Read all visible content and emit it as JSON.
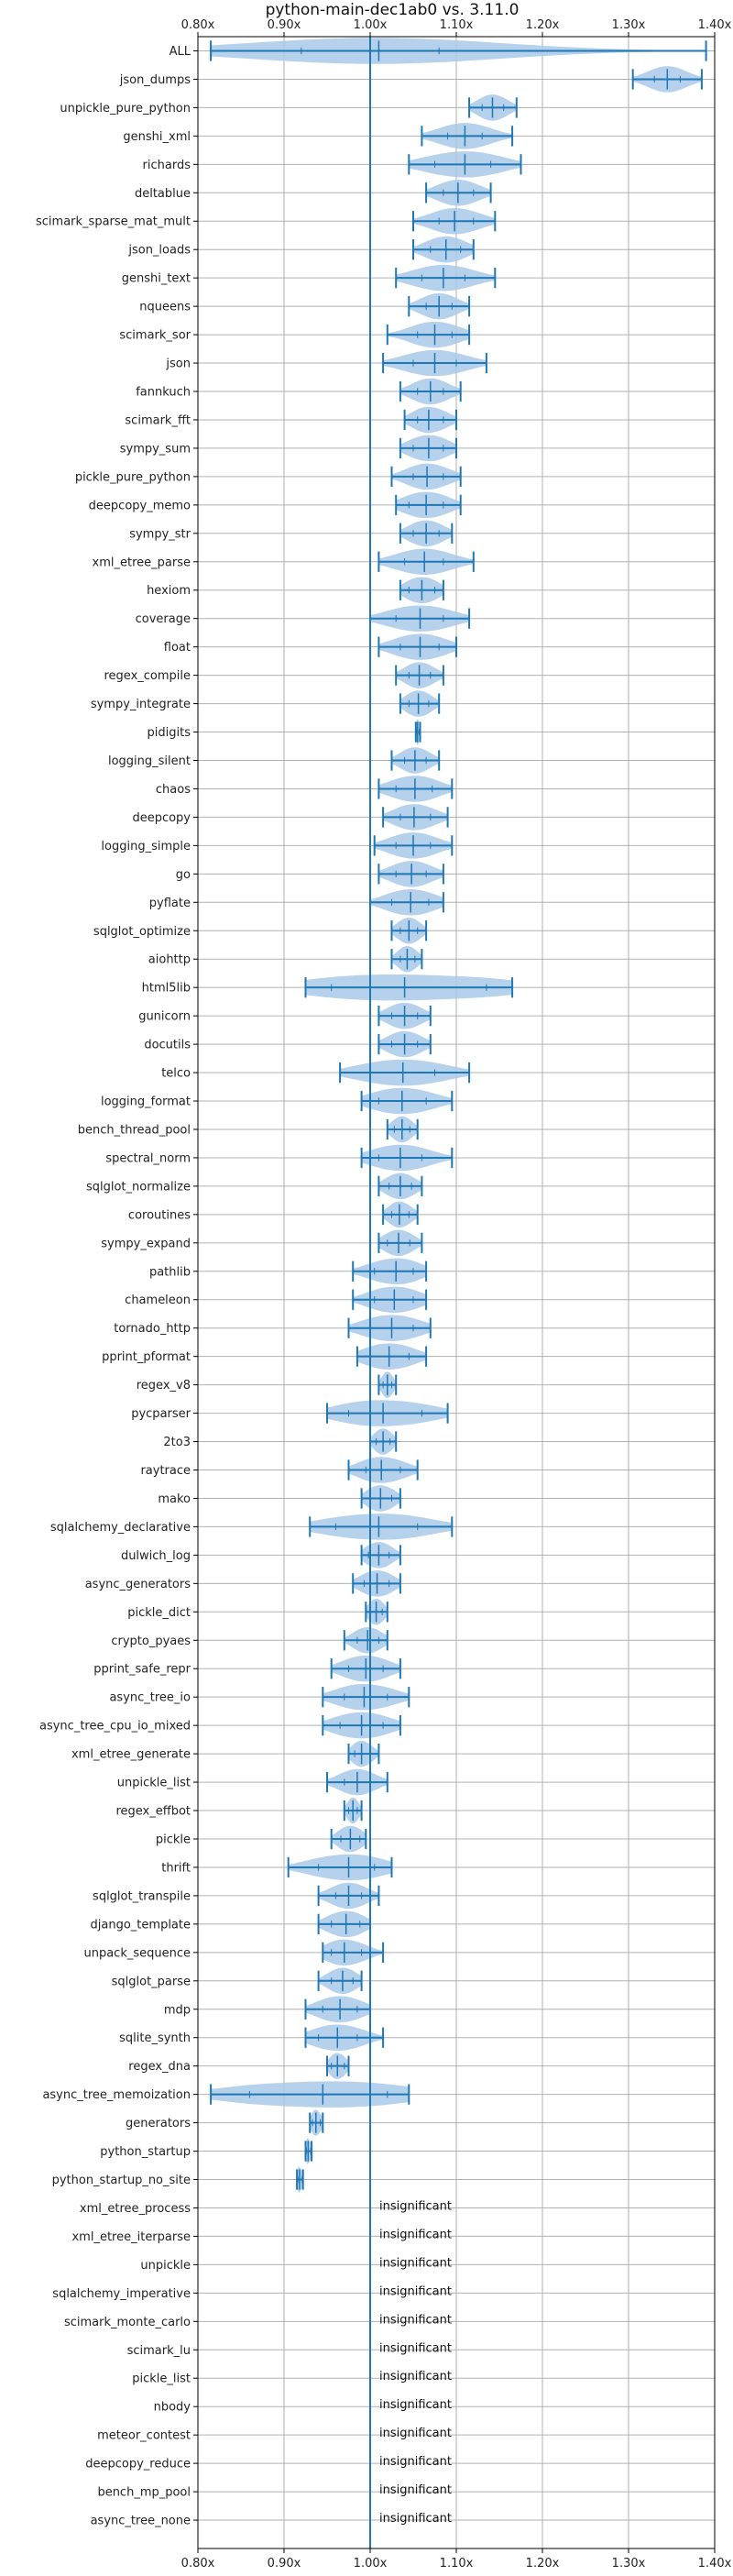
{
  "chart_data": {
    "type": "violin",
    "title": "python-main-dec1ab0 vs. 3.11.0",
    "xlabel": "",
    "ylabel": "",
    "xlim": [
      0.8,
      1.4
    ],
    "x_ticks": [
      0.8,
      0.9,
      1.0,
      1.1,
      1.2,
      1.3,
      1.4
    ],
    "x_tick_labels": [
      "0.80x",
      "0.90x",
      "1.00x",
      "1.10x",
      "1.20x",
      "1.30x",
      "1.40x"
    ],
    "reference_line": 1.0,
    "grid": true,
    "colors": {
      "violin_fill": "#a9c9e8",
      "line": "#1f77b4",
      "grid": "#b0b0b0"
    },
    "insignificant_label": "insignificant",
    "benchmarks": [
      {
        "name": "ALL",
        "min": 0.815,
        "max": 1.39,
        "mean": 1.01,
        "q1": 0.92,
        "q3": 1.08
      },
      {
        "name": "json_dumps",
        "min": 1.305,
        "max": 1.385,
        "mean": 1.345,
        "q1": 1.33,
        "q3": 1.36
      },
      {
        "name": "unpickle_pure_python",
        "min": 1.115,
        "max": 1.17,
        "mean": 1.142,
        "q1": 1.13,
        "q3": 1.155
      },
      {
        "name": "genshi_xml",
        "min": 1.06,
        "max": 1.165,
        "mean": 1.11,
        "q1": 1.09,
        "q3": 1.13
      },
      {
        "name": "richards",
        "min": 1.045,
        "max": 1.175,
        "mean": 1.11,
        "q1": 1.075,
        "q3": 1.14
      },
      {
        "name": "deltablue",
        "min": 1.065,
        "max": 1.14,
        "mean": 1.102,
        "q1": 1.085,
        "q3": 1.12
      },
      {
        "name": "scimark_sparse_mat_mult",
        "min": 1.05,
        "max": 1.145,
        "mean": 1.098,
        "q1": 1.08,
        "q3": 1.12
      },
      {
        "name": "json_loads",
        "min": 1.05,
        "max": 1.12,
        "mean": 1.088,
        "q1": 1.07,
        "q3": 1.105
      },
      {
        "name": "genshi_text",
        "min": 1.03,
        "max": 1.145,
        "mean": 1.085,
        "q1": 1.06,
        "q3": 1.11
      },
      {
        "name": "nqueens",
        "min": 1.045,
        "max": 1.115,
        "mean": 1.08,
        "q1": 1.065,
        "q3": 1.095
      },
      {
        "name": "scimark_sor",
        "min": 1.02,
        "max": 1.115,
        "mean": 1.075,
        "q1": 1.055,
        "q3": 1.095
      },
      {
        "name": "json",
        "min": 1.015,
        "max": 1.135,
        "mean": 1.075,
        "q1": 1.05,
        "q3": 1.1
      },
      {
        "name": "fannkuch",
        "min": 1.035,
        "max": 1.105,
        "mean": 1.07,
        "q1": 1.055,
        "q3": 1.085
      },
      {
        "name": "scimark_fft",
        "min": 1.04,
        "max": 1.1,
        "mean": 1.068,
        "q1": 1.055,
        "q3": 1.085
      },
      {
        "name": "sympy_sum",
        "min": 1.035,
        "max": 1.1,
        "mean": 1.068,
        "q1": 1.05,
        "q3": 1.085
      },
      {
        "name": "pickle_pure_python",
        "min": 1.025,
        "max": 1.105,
        "mean": 1.066,
        "q1": 1.05,
        "q3": 1.085
      },
      {
        "name": "deepcopy_memo",
        "min": 1.03,
        "max": 1.105,
        "mean": 1.065,
        "q1": 1.045,
        "q3": 1.085
      },
      {
        "name": "sympy_str",
        "min": 1.035,
        "max": 1.095,
        "mean": 1.065,
        "q1": 1.05,
        "q3": 1.08
      },
      {
        "name": "xml_etree_parse",
        "min": 1.01,
        "max": 1.12,
        "mean": 1.063,
        "q1": 1.04,
        "q3": 1.085
      },
      {
        "name": "hexiom",
        "min": 1.035,
        "max": 1.085,
        "mean": 1.06,
        "q1": 1.045,
        "q3": 1.075
      },
      {
        "name": "coverage",
        "min": 1.0,
        "max": 1.115,
        "mean": 1.058,
        "q1": 1.03,
        "q3": 1.085
      },
      {
        "name": "float",
        "min": 1.01,
        "max": 1.1,
        "mean": 1.058,
        "q1": 1.035,
        "q3": 1.08
      },
      {
        "name": "regex_compile",
        "min": 1.03,
        "max": 1.085,
        "mean": 1.057,
        "q1": 1.045,
        "q3": 1.07
      },
      {
        "name": "sympy_integrate",
        "min": 1.035,
        "max": 1.08,
        "mean": 1.056,
        "q1": 1.045,
        "q3": 1.068
      },
      {
        "name": "pidigits",
        "min": 1.053,
        "max": 1.058,
        "mean": 1.055,
        "q1": 1.054,
        "q3": 1.057
      },
      {
        "name": "logging_silent",
        "min": 1.025,
        "max": 1.08,
        "mean": 1.052,
        "q1": 1.04,
        "q3": 1.065
      },
      {
        "name": "chaos",
        "min": 1.01,
        "max": 1.095,
        "mean": 1.052,
        "q1": 1.03,
        "q3": 1.072
      },
      {
        "name": "deepcopy",
        "min": 1.015,
        "max": 1.09,
        "mean": 1.051,
        "q1": 1.035,
        "q3": 1.07
      },
      {
        "name": "logging_simple",
        "min": 1.005,
        "max": 1.095,
        "mean": 1.05,
        "q1": 1.03,
        "q3": 1.07
      },
      {
        "name": "go",
        "min": 1.01,
        "max": 1.085,
        "mean": 1.048,
        "q1": 1.03,
        "q3": 1.065
      },
      {
        "name": "pyflate",
        "min": 1.0,
        "max": 1.085,
        "mean": 1.047,
        "q1": 1.025,
        "q3": 1.068
      },
      {
        "name": "sqlglot_optimize",
        "min": 1.025,
        "max": 1.065,
        "mean": 1.045,
        "q1": 1.035,
        "q3": 1.055
      },
      {
        "name": "aiohttp",
        "min": 1.025,
        "max": 1.06,
        "mean": 1.043,
        "q1": 1.035,
        "q3": 1.052
      },
      {
        "name": "html5lib",
        "min": 0.925,
        "max": 1.165,
        "mean": 1.04,
        "q1": 0.955,
        "q3": 1.135
      },
      {
        "name": "gunicorn",
        "min": 1.01,
        "max": 1.07,
        "mean": 1.04,
        "q1": 1.025,
        "q3": 1.055
      },
      {
        "name": "docutils",
        "min": 1.01,
        "max": 1.07,
        "mean": 1.04,
        "q1": 1.025,
        "q3": 1.055
      },
      {
        "name": "telco",
        "min": 0.965,
        "max": 1.115,
        "mean": 1.038,
        "q1": 1.0,
        "q3": 1.075
      },
      {
        "name": "logging_format",
        "min": 0.99,
        "max": 1.095,
        "mean": 1.037,
        "q1": 1.01,
        "q3": 1.065
      },
      {
        "name": "bench_thread_pool",
        "min": 1.02,
        "max": 1.055,
        "mean": 1.037,
        "q1": 1.028,
        "q3": 1.046
      },
      {
        "name": "spectral_norm",
        "min": 0.99,
        "max": 1.095,
        "mean": 1.035,
        "q1": 1.01,
        "q3": 1.06
      },
      {
        "name": "sqlglot_normalize",
        "min": 1.01,
        "max": 1.06,
        "mean": 1.035,
        "q1": 1.022,
        "q3": 1.048
      },
      {
        "name": "coroutines",
        "min": 1.015,
        "max": 1.055,
        "mean": 1.034,
        "q1": 1.025,
        "q3": 1.045
      },
      {
        "name": "sympy_expand",
        "min": 1.01,
        "max": 1.06,
        "mean": 1.033,
        "q1": 1.02,
        "q3": 1.046
      },
      {
        "name": "pathlib",
        "min": 0.98,
        "max": 1.065,
        "mean": 1.03,
        "q1": 1.005,
        "q3": 1.05
      },
      {
        "name": "chameleon",
        "min": 0.98,
        "max": 1.065,
        "mean": 1.028,
        "q1": 1.005,
        "q3": 1.05
      },
      {
        "name": "tornado_http",
        "min": 0.975,
        "max": 1.07,
        "mean": 1.025,
        "q1": 1.0,
        "q3": 1.05
      },
      {
        "name": "pprint_pformat",
        "min": 0.985,
        "max": 1.065,
        "mean": 1.022,
        "q1": 1.0,
        "q3": 1.045
      },
      {
        "name": "regex_v8",
        "min": 1.01,
        "max": 1.03,
        "mean": 1.02,
        "q1": 1.015,
        "q3": 1.025
      },
      {
        "name": "pycparser",
        "min": 0.95,
        "max": 1.09,
        "mean": 1.015,
        "q1": 0.975,
        "q3": 1.06
      },
      {
        "name": "2to3",
        "min": 1.0,
        "max": 1.03,
        "mean": 1.015,
        "q1": 1.007,
        "q3": 1.023
      },
      {
        "name": "raytrace",
        "min": 0.975,
        "max": 1.055,
        "mean": 1.013,
        "q1": 0.995,
        "q3": 1.035
      },
      {
        "name": "mako",
        "min": 0.99,
        "max": 1.035,
        "mean": 1.012,
        "q1": 1.0,
        "q3": 1.025
      },
      {
        "name": "sqlalchemy_declarative",
        "min": 0.93,
        "max": 1.095,
        "mean": 1.01,
        "q1": 0.96,
        "q3": 1.055
      },
      {
        "name": "dulwich_log",
        "min": 0.99,
        "max": 1.035,
        "mean": 1.01,
        "q1": 0.998,
        "q3": 1.022
      },
      {
        "name": "async_generators",
        "min": 0.98,
        "max": 1.035,
        "mean": 1.008,
        "q1": 0.993,
        "q3": 1.022
      },
      {
        "name": "pickle_dict",
        "min": 0.995,
        "max": 1.02,
        "mean": 1.007,
        "q1": 1.0,
        "q3": 1.014
      },
      {
        "name": "crypto_pyaes",
        "min": 0.97,
        "max": 1.02,
        "mean": 0.997,
        "q1": 0.985,
        "q3": 1.01
      },
      {
        "name": "pprint_safe_repr",
        "min": 0.955,
        "max": 1.035,
        "mean": 0.995,
        "q1": 0.975,
        "q3": 1.015
      },
      {
        "name": "async_tree_io",
        "min": 0.945,
        "max": 1.045,
        "mean": 0.993,
        "q1": 0.97,
        "q3": 1.02
      },
      {
        "name": "async_tree_cpu_io_mixed",
        "min": 0.945,
        "max": 1.035,
        "mean": 0.99,
        "q1": 0.965,
        "q3": 1.015
      },
      {
        "name": "xml_etree_generate",
        "min": 0.975,
        "max": 1.01,
        "mean": 0.99,
        "q1": 0.982,
        "q3": 1.0
      },
      {
        "name": "unpickle_list",
        "min": 0.95,
        "max": 1.02,
        "mean": 0.985,
        "q1": 0.97,
        "q3": 1.0
      },
      {
        "name": "regex_effbot",
        "min": 0.97,
        "max": 0.99,
        "mean": 0.98,
        "q1": 0.975,
        "q3": 0.985
      },
      {
        "name": "pickle",
        "min": 0.955,
        "max": 0.995,
        "mean": 0.977,
        "q1": 0.966,
        "q3": 0.988
      },
      {
        "name": "thrift",
        "min": 0.905,
        "max": 1.025,
        "mean": 0.975,
        "q1": 0.94,
        "q3": 1.005
      },
      {
        "name": "sqlglot_transpile",
        "min": 0.94,
        "max": 1.01,
        "mean": 0.975,
        "q1": 0.96,
        "q3": 0.99
      },
      {
        "name": "django_template",
        "min": 0.94,
        "max": 1.0,
        "mean": 0.972,
        "q1": 0.955,
        "q3": 0.988
      },
      {
        "name": "unpack_sequence",
        "min": 0.945,
        "max": 1.015,
        "mean": 0.97,
        "q1": 0.955,
        "q3": 0.99
      },
      {
        "name": "sqlglot_parse",
        "min": 0.94,
        "max": 0.99,
        "mean": 0.968,
        "q1": 0.955,
        "q3": 0.98
      },
      {
        "name": "mdp",
        "min": 0.925,
        "max": 1.0,
        "mean": 0.965,
        "q1": 0.945,
        "q3": 0.985
      },
      {
        "name": "sqlite_synth",
        "min": 0.925,
        "max": 1.015,
        "mean": 0.962,
        "q1": 0.94,
        "q3": 0.985
      },
      {
        "name": "regex_dna",
        "min": 0.95,
        "max": 0.975,
        "mean": 0.962,
        "q1": 0.955,
        "q3": 0.97
      },
      {
        "name": "async_tree_memoization",
        "min": 0.815,
        "max": 1.045,
        "mean": 0.945,
        "q1": 0.86,
        "q3": 1.02
      },
      {
        "name": "generators",
        "min": 0.93,
        "max": 0.945,
        "mean": 0.937,
        "q1": 0.933,
        "q3": 0.942
      },
      {
        "name": "python_startup",
        "min": 0.925,
        "max": 0.932,
        "mean": 0.928,
        "q1": 0.926,
        "q3": 0.931
      },
      {
        "name": "python_startup_no_site",
        "min": 0.915,
        "max": 0.922,
        "mean": 0.918,
        "q1": 0.916,
        "q3": 0.921
      },
      {
        "name": "xml_etree_process",
        "insignificant": true
      },
      {
        "name": "xml_etree_iterparse",
        "insignificant": true
      },
      {
        "name": "unpickle",
        "insignificant": true
      },
      {
        "name": "sqlalchemy_imperative",
        "insignificant": true
      },
      {
        "name": "scimark_monte_carlo",
        "insignificant": true
      },
      {
        "name": "scimark_lu",
        "insignificant": true
      },
      {
        "name": "pickle_list",
        "insignificant": true
      },
      {
        "name": "nbody",
        "insignificant": true
      },
      {
        "name": "meteor_contest",
        "insignificant": true
      },
      {
        "name": "deepcopy_reduce",
        "insignificant": true
      },
      {
        "name": "bench_mp_pool",
        "insignificant": true
      },
      {
        "name": "async_tree_none",
        "insignificant": true
      }
    ]
  }
}
